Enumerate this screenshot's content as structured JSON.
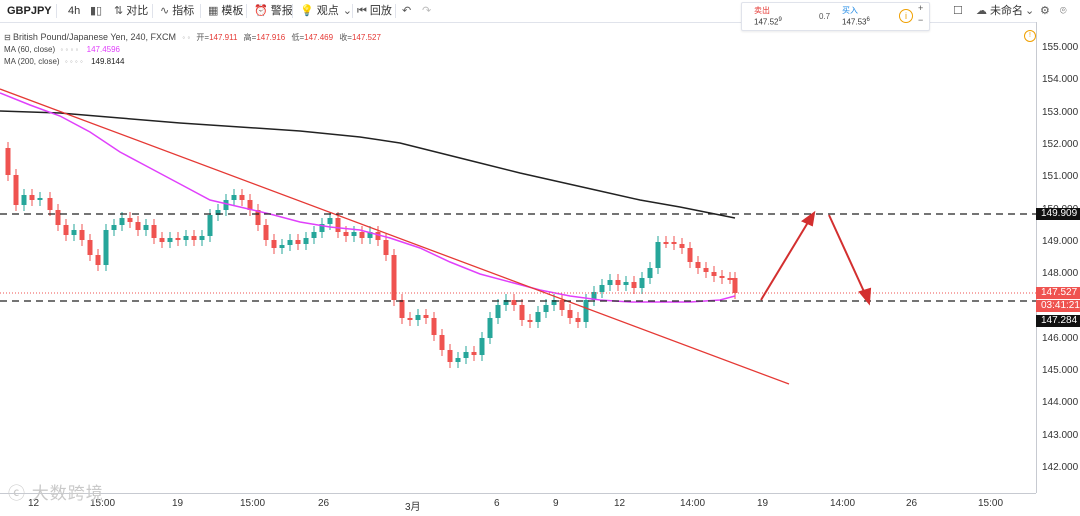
{
  "toolbar": {
    "symbol": "GBPJPY",
    "interval": "4h",
    "compare": "对比",
    "indicators": "指标",
    "templates": "模板",
    "alert": "警报",
    "ideas": "观点",
    "replay": "回放",
    "unnamed": "未命名"
  },
  "quote": {
    "sell_label": "卖出",
    "sell_price": "147.52",
    "sell_sup": "9",
    "spread": "0.7",
    "buy_label": "买入",
    "buy_price": "147.53",
    "buy_sup": "6",
    "plus": "+",
    "minus": "−"
  },
  "legend": {
    "title": "British Pound/Japanese Yen, 240, FXCM",
    "open_k": "开=",
    "open": "147.911",
    "high_k": "高=",
    "high": "147.916",
    "low_k": "低=",
    "low": "147.469",
    "close_k": "收=",
    "close": "147.527",
    "ma60_label": "MA (60, close)",
    "ma60_value": "147.4596",
    "ma200_label": "MA (200, close)",
    "ma200_value": "149.8144"
  },
  "price_axis": [
    "155.000",
    "154.000",
    "153.000",
    "152.000",
    "151.000",
    "150.000",
    "149.000",
    "148.000",
    "147.000",
    "146.000",
    "145.000",
    "144.000",
    "143.000",
    "142.000"
  ],
  "tags": {
    "resistance": "149.909",
    "price": "147.527",
    "countdown": "03:41:21",
    "support": "147.284"
  },
  "time_axis": [
    "12",
    "15:00",
    "19",
    "15:00",
    "26",
    "3月",
    "6",
    "9",
    "12",
    "14:00",
    "19",
    "14:00",
    "26",
    "15:00"
  ],
  "watermark": "大数跨境",
  "colors": {
    "up": "#26a69a",
    "down": "#ef5350",
    "ma60": "#e040fb",
    "ma200": "#222222",
    "trend": "#e53935",
    "arrow": "#d32f2f"
  },
  "chart_data": {
    "type": "candlestick",
    "symbol": "British Pound/Japanese Yen, 240, FXCM",
    "ylim": [
      141.6,
      155.5
    ],
    "last": {
      "open": 147.911,
      "high": 147.916,
      "low": 147.469,
      "close": 147.527
    },
    "horizontal_levels": [
      149.909,
      147.284
    ],
    "ma60_last": 147.4596,
    "ma200_last": 149.8144
  }
}
